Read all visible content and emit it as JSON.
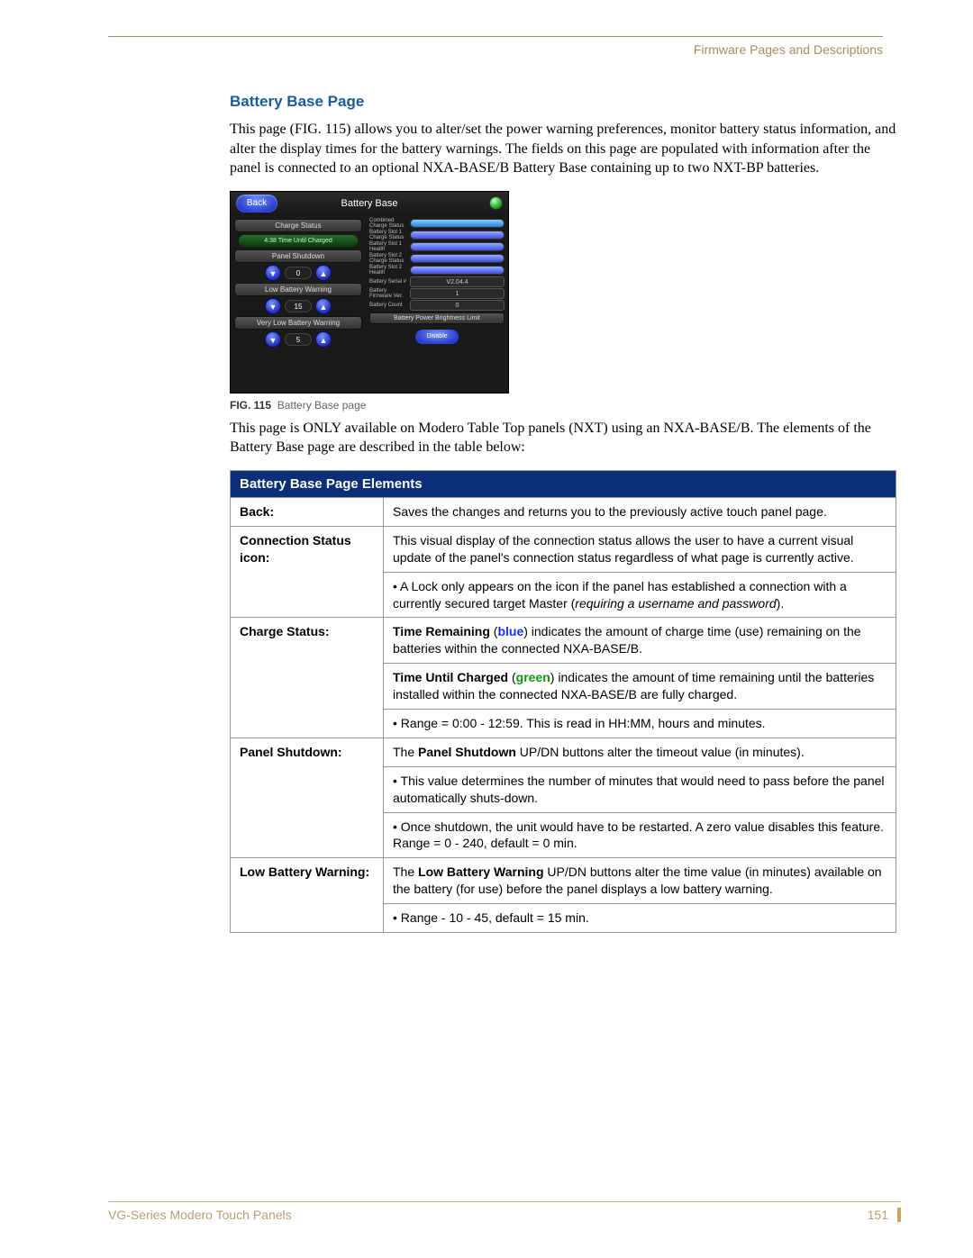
{
  "header": {
    "section": "Firmware Pages and Descriptions"
  },
  "title": "Battery Base Page",
  "intro": "This page (FIG. 115) allows you to alter/set the power warning preferences, monitor battery status information, and alter the display times for the battery warnings. The fields on this page are populated with information after the panel is connected to an optional NXA-BASE/B Battery Base containing up to two NXT-BP batteries.",
  "figure": {
    "number": "FIG. 115",
    "caption": "Battery Base page",
    "panel": {
      "back_label": "Back",
      "title": "Battery Base",
      "status_color": "#1fc41f",
      "left": {
        "charge_status_label": "Charge Status",
        "time_until_charged": "4:38   Time Until Charged",
        "panel_shutdown_label": "Panel Shutdown",
        "panel_shutdown_value": "0",
        "low_battery_label": "Low Battery Warning",
        "low_battery_value": "15",
        "very_low_label": "Very Low Battery Warning",
        "very_low_value": "5"
      },
      "right": {
        "rows": [
          {
            "label": "Combined Charge Status",
            "type": "bar",
            "color": "linear-gradient(#7fd0ff,#2a7fd8)"
          },
          {
            "label": "Battery Slot 1 Charge Status",
            "type": "bar",
            "color": "linear-gradient(#9aa8ff,#3a50e0)"
          },
          {
            "label": "Battery Slot 1 Health",
            "type": "bar",
            "color": "linear-gradient(#9aa8ff,#3a50e0)"
          },
          {
            "label": "Battery Slot 2 Charge Status",
            "type": "bar",
            "color": "linear-gradient(#9aa8ff,#3a50e0)"
          },
          {
            "label": "Battery Slot 2 Health",
            "type": "bar",
            "color": "linear-gradient(#9aa8ff,#3a50e0)"
          },
          {
            "label": "Battery Serial #",
            "type": "box",
            "value": "V2.04.4"
          },
          {
            "label": "Battery Firmware Ver.",
            "type": "box",
            "value": "1"
          },
          {
            "label": "Battery Count",
            "type": "box",
            "value": "0"
          }
        ],
        "brightness_label": "Battery Power Brightness Limit",
        "disable_label": "Disable"
      }
    }
  },
  "post_figure": "This page is ONLY available on Modero Table Top panels (NXT) using an NXA-BASE/B. The elements of the Battery Base page are described in the table below:",
  "table": {
    "title": "Battery Base Page Elements",
    "rows": [
      {
        "label": "Back:",
        "cells": [
          "Saves the changes and returns you to the previously active touch panel page."
        ]
      },
      {
        "label": "Connection Status icon:",
        "cells": [
          "This visual display of the connection status allows the user to have a current visual update of the panel's connection status regardless of what page is currently active.",
          "• A Lock only appears on the icon if the panel has established a connection with a currently secured target Master (<i>requiring a username and password</i>)."
        ]
      },
      {
        "label": "Charge Status:",
        "cells": [
          "<b>Time Remaining</b> (<span class='blue-inline'>blue</span>) indicates the amount of charge time (use) remaining on the batteries within the connected NXA-BASE/B.",
          "<b>Time Until Charged</b> (<span class='green-inline'>green</span>) indicates the amount of time remaining until the batteries installed within the connected NXA-BASE/B are fully charged.",
          "• Range = 0:00 - 12:59. This is read in HH:MM, hours and minutes."
        ]
      },
      {
        "label": "Panel Shutdown:",
        "cells": [
          "The <b>Panel Shutdown</b> UP/DN buttons alter the timeout value (in minutes).",
          "• This value determines the number of minutes that would need to pass before the panel automatically shuts-down.",
          "• Once shutdown, the unit would have to be restarted. A zero value disables this feature. Range = 0 - 240, default = 0 min."
        ]
      },
      {
        "label": "Low Battery Warning:",
        "cells": [
          "The <b>Low Battery Warning</b> UP/DN buttons alter the time value (in minutes) available on the battery (for use) before the panel displays a low battery warning.",
          "• Range - 10 - 45, default = 15 min."
        ]
      }
    ]
  },
  "footer": {
    "doc_title": "VG-Series Modero Touch Panels",
    "page_number": "151"
  },
  "colors": {
    "header_bg": "#0a2e78",
    "accent": "#a88c5c"
  }
}
